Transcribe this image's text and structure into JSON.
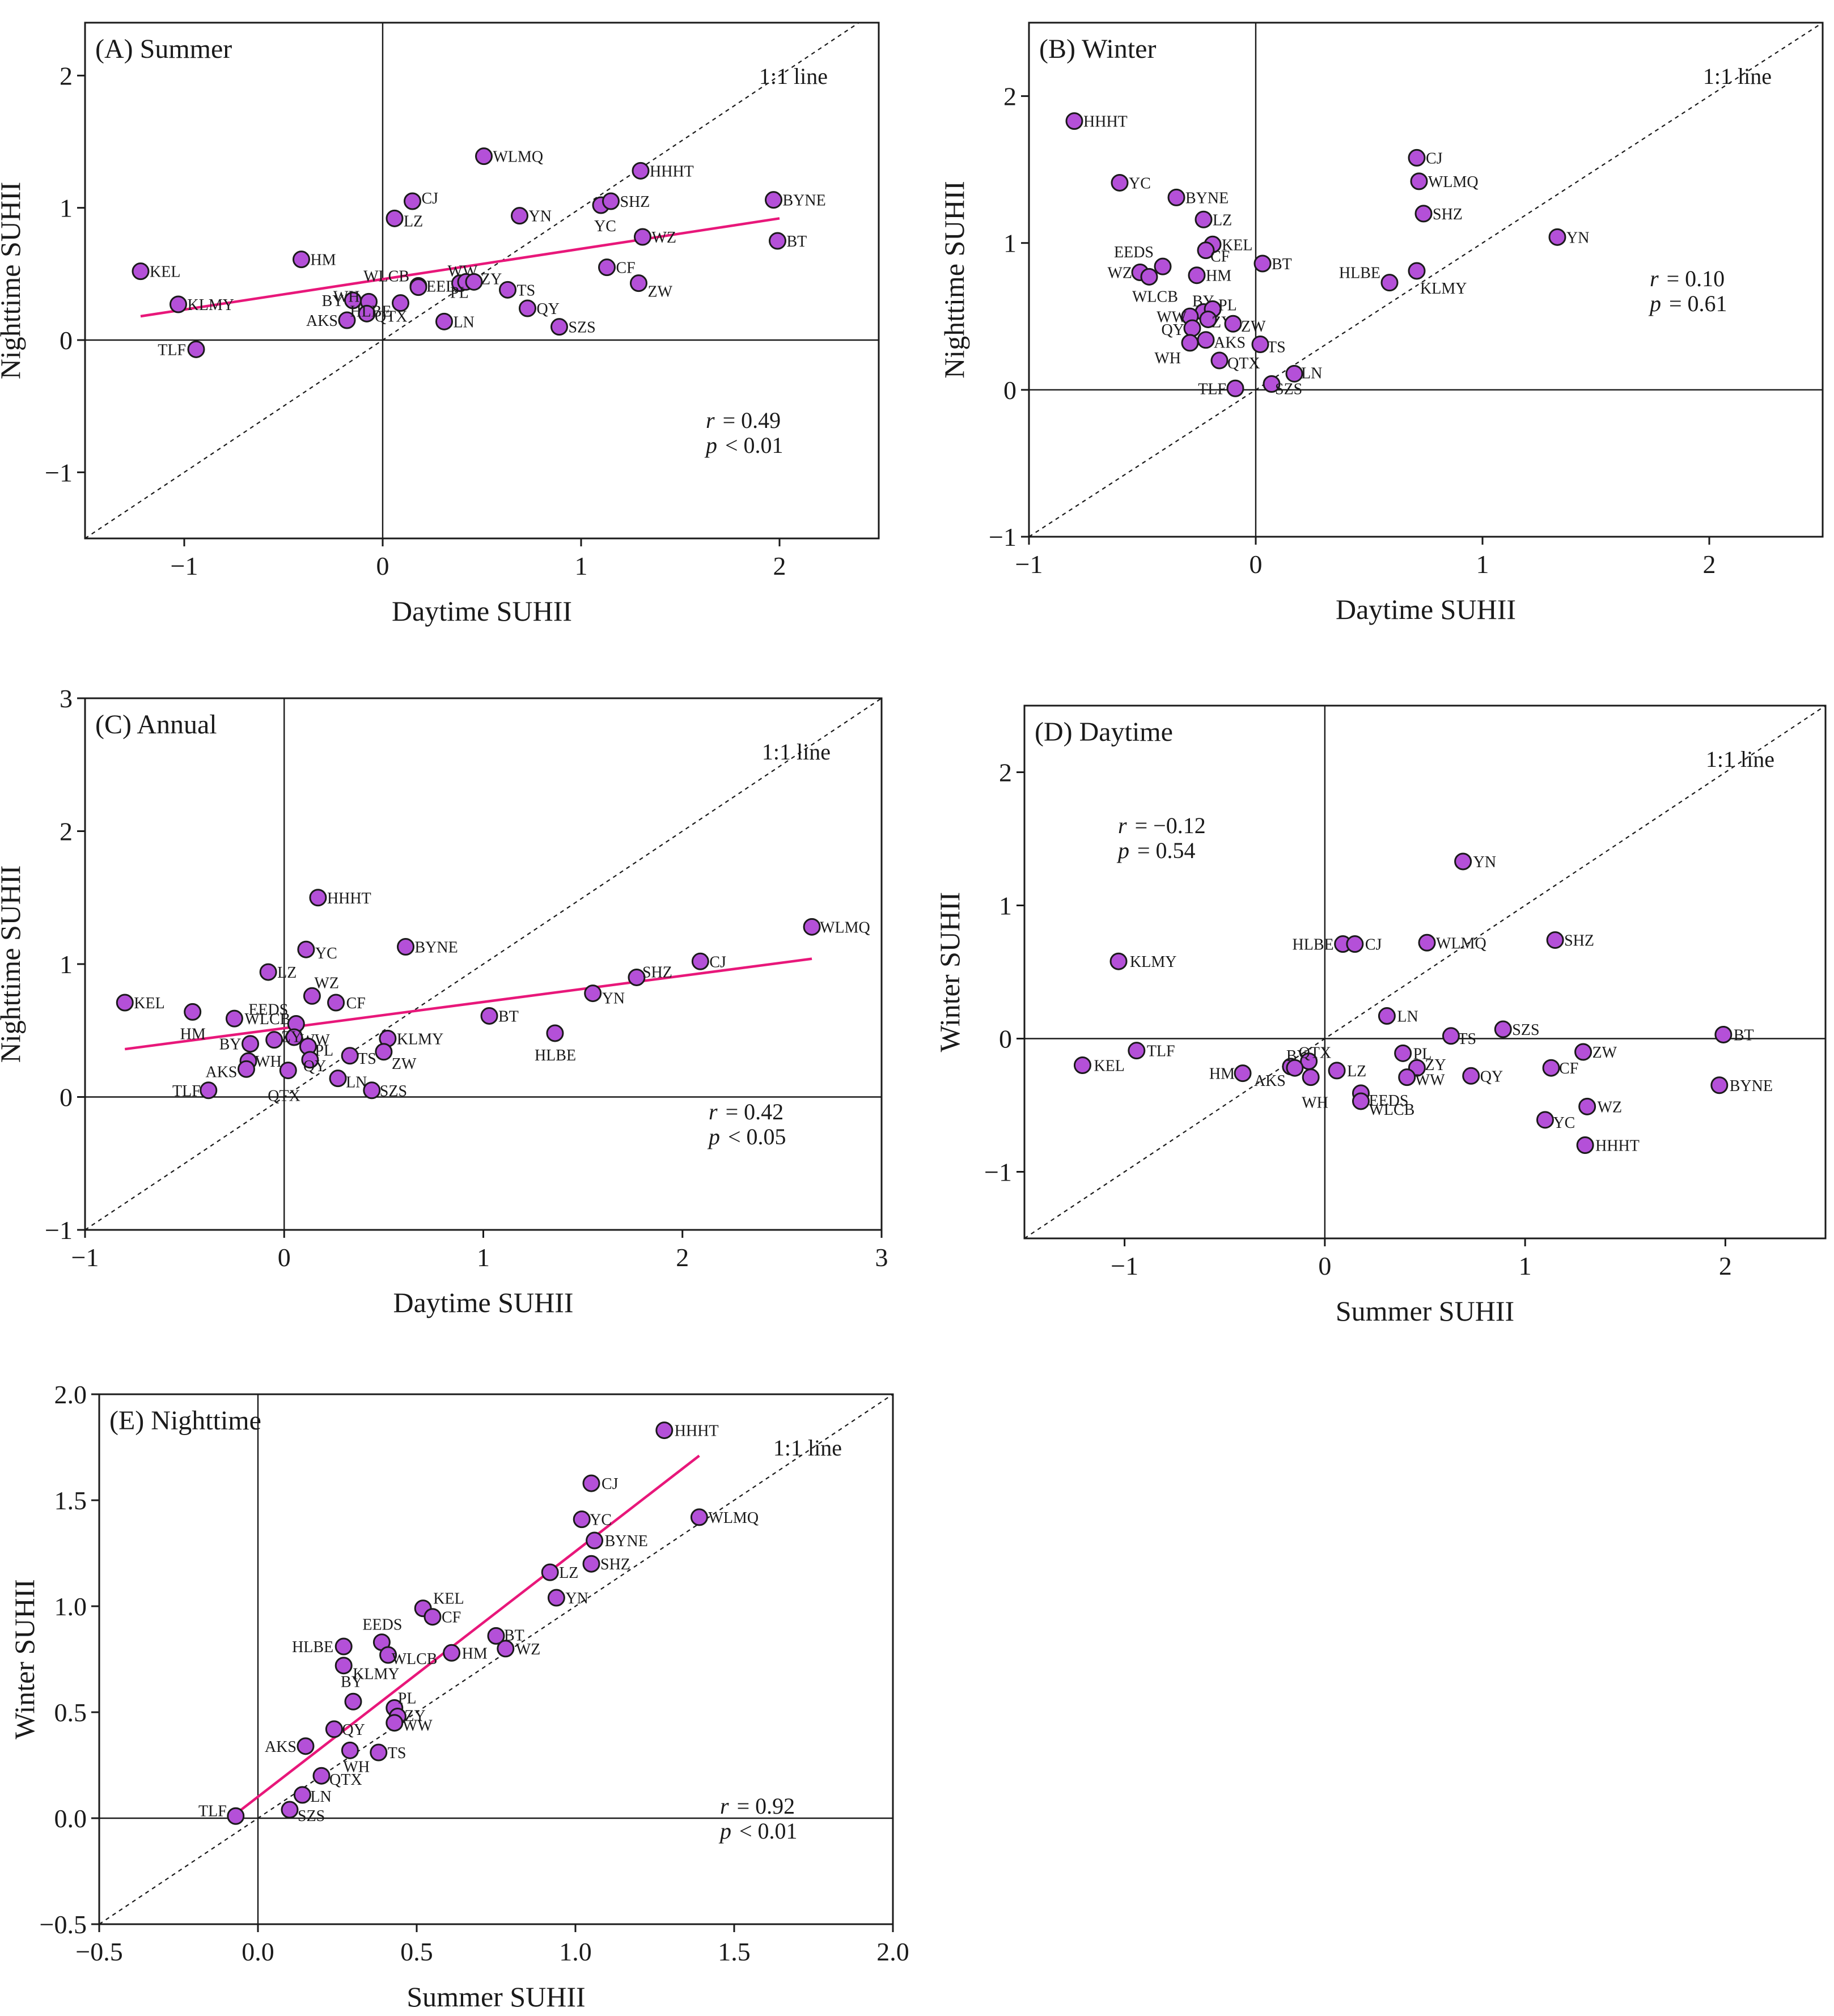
{
  "colors": {
    "point_fill": "#b450d8",
    "point_stroke": "#1a1a1a",
    "fit_line": "#e8177a",
    "axis": "#1a1a1a"
  },
  "chart_data": [
    {
      "id": "A",
      "type": "scatter",
      "title": "(A) Summer",
      "xlabel": "Daytime SUHII",
      "ylabel": "Nighttime SUHII",
      "xlim": [
        -1.5,
        2.5
      ],
      "ylim": [
        -1.5,
        2.4
      ],
      "xticks": [
        -1,
        0,
        1,
        2
      ],
      "yticks": [
        -1,
        0,
        1,
        2
      ],
      "xtick_labels": [
        "−1",
        "0",
        "1",
        "2"
      ],
      "ytick_labels": [
        "−1",
        "0",
        "1",
        "2"
      ],
      "one_to_one_label": "1:1 line",
      "stats": {
        "r_label": "r",
        "r_value": "= 0.49",
        "p_label": "p",
        "p_value": "< 0.01"
      },
      "fit": {
        "x": [
          -1.22,
          2.0
        ],
        "y": [
          0.18,
          0.92
        ]
      },
      "points": [
        {
          "label": "KEL",
          "x": -1.22,
          "y": 0.52
        },
        {
          "label": "KLMY",
          "x": -1.03,
          "y": 0.27
        },
        {
          "label": "TLF",
          "x": -0.94,
          "y": -0.07
        },
        {
          "label": "HM",
          "x": -0.41,
          "y": 0.61
        },
        {
          "label": "BY",
          "x": -0.15,
          "y": 0.3
        },
        {
          "label": "WH",
          "x": -0.07,
          "y": 0.29
        },
        {
          "label": "AKS",
          "x": -0.18,
          "y": 0.15
        },
        {
          "label": "QTX",
          "x": -0.08,
          "y": 0.2
        },
        {
          "label": "HLBE",
          "x": 0.09,
          "y": 0.28
        },
        {
          "label": "WLCB",
          "x": 0.18,
          "y": 0.41
        },
        {
          "label": "EEDS",
          "x": 0.18,
          "y": 0.4
        },
        {
          "label": "LZ",
          "x": 0.06,
          "y": 0.92
        },
        {
          "label": "CJ",
          "x": 0.15,
          "y": 1.05
        },
        {
          "label": "WLMQ",
          "x": 0.51,
          "y": 1.39
        },
        {
          "label": "WW",
          "x": 0.39,
          "y": 0.43
        },
        {
          "label": "PL",
          "x": 0.42,
          "y": 0.44
        },
        {
          "label": "ZY",
          "x": 0.46,
          "y": 0.44
        },
        {
          "label": "LN",
          "x": 0.31,
          "y": 0.14
        },
        {
          "label": "TS",
          "x": 0.63,
          "y": 0.38
        },
        {
          "label": "QY",
          "x": 0.73,
          "y": 0.24
        },
        {
          "label": "SZS",
          "x": 0.89,
          "y": 0.1
        },
        {
          "label": "YN",
          "x": 0.69,
          "y": 0.94
        },
        {
          "label": "YC",
          "x": 1.1,
          "y": 1.02
        },
        {
          "label": "SHZ",
          "x": 1.15,
          "y": 1.05
        },
        {
          "label": "HHHT",
          "x": 1.3,
          "y": 1.28
        },
        {
          "label": "CF",
          "x": 1.13,
          "y": 0.55
        },
        {
          "label": "ZW",
          "x": 1.29,
          "y": 0.43
        },
        {
          "label": "WZ",
          "x": 1.31,
          "y": 0.78
        },
        {
          "label": "BYNE",
          "x": 1.97,
          "y": 1.06
        },
        {
          "label": "BT",
          "x": 1.99,
          "y": 0.75
        }
      ]
    },
    {
      "id": "B",
      "type": "scatter",
      "title": "(B) Winter",
      "xlabel": "Daytime SUHII",
      "ylabel": "Nighttime SUHII",
      "xlim": [
        -1.0,
        2.5
      ],
      "ylim": [
        -1.0,
        2.5
      ],
      "xticks": [
        -1,
        0,
        1,
        2
      ],
      "yticks": [
        -1,
        0,
        1,
        2
      ],
      "xtick_labels": [
        "−1",
        "0",
        "1",
        "2"
      ],
      "ytick_labels": [
        "−1",
        "0",
        "1",
        "2"
      ],
      "one_to_one_label": "1:1 line",
      "stats": {
        "r_label": "r",
        "r_value": "= 0.10",
        "p_label": "p",
        "p_value": "= 0.61"
      },
      "points": [
        {
          "label": "HHHT",
          "x": -0.8,
          "y": 1.83
        },
        {
          "label": "YC",
          "x": -0.6,
          "y": 1.41
        },
        {
          "label": "BYNE",
          "x": -0.35,
          "y": 1.31
        },
        {
          "label": "LZ",
          "x": -0.23,
          "y": 1.16
        },
        {
          "label": "KEL",
          "x": -0.19,
          "y": 0.99
        },
        {
          "label": "CF",
          "x": -0.22,
          "y": 0.95
        },
        {
          "label": "EEDS",
          "x": -0.41,
          "y": 0.84
        },
        {
          "label": "WZ",
          "x": -0.51,
          "y": 0.8
        },
        {
          "label": "WLCB",
          "x": -0.47,
          "y": 0.77
        },
        {
          "label": "HM",
          "x": -0.26,
          "y": 0.78
        },
        {
          "label": "BT",
          "x": 0.03,
          "y": 0.86
        },
        {
          "label": "BY",
          "x": -0.23,
          "y": 0.53
        },
        {
          "label": "PL",
          "x": -0.19,
          "y": 0.55
        },
        {
          "label": "WW",
          "x": -0.29,
          "y": 0.5
        },
        {
          "label": "ZY",
          "x": -0.21,
          "y": 0.48
        },
        {
          "label": "ZW",
          "x": -0.1,
          "y": 0.45
        },
        {
          "label": "QY",
          "x": -0.28,
          "y": 0.42
        },
        {
          "label": "AKS",
          "x": -0.22,
          "y": 0.34
        },
        {
          "label": "WH",
          "x": -0.29,
          "y": 0.32
        },
        {
          "label": "TS",
          "x": 0.02,
          "y": 0.31
        },
        {
          "label": "QTX",
          "x": -0.16,
          "y": 0.2
        },
        {
          "label": "TLF",
          "x": -0.09,
          "y": 0.01
        },
        {
          "label": "SZS",
          "x": 0.07,
          "y": 0.04
        },
        {
          "label": "LN",
          "x": 0.17,
          "y": 0.11
        },
        {
          "label": "CJ",
          "x": 0.71,
          "y": 1.58
        },
        {
          "label": "WLMQ",
          "x": 0.72,
          "y": 1.42
        },
        {
          "label": "SHZ",
          "x": 0.74,
          "y": 1.2
        },
        {
          "label": "HLBE",
          "x": 0.59,
          "y": 0.73
        },
        {
          "label": "KLMY",
          "x": 0.71,
          "y": 0.81
        },
        {
          "label": "YN",
          "x": 1.33,
          "y": 1.04
        }
      ]
    },
    {
      "id": "C",
      "type": "scatter",
      "title": "(C) Annual",
      "xlabel": "Daytime SUHII",
      "ylabel": "Nighttime SUHII",
      "xlim": [
        -1.0,
        3.0
      ],
      "ylim": [
        -1.0,
        3.0
      ],
      "xticks": [
        -1,
        0,
        1,
        2,
        3
      ],
      "yticks": [
        -1,
        0,
        1,
        2,
        3
      ],
      "xtick_labels": [
        "−1",
        "0",
        "1",
        "2",
        "3"
      ],
      "ytick_labels": [
        "−1",
        "0",
        "1",
        "2",
        "3"
      ],
      "one_to_one_label": "1:1 line",
      "stats": {
        "r_label": "r",
        "r_value": "= 0.42",
        "p_label": "p",
        "p_value": "< 0.05"
      },
      "fit": {
        "x": [
          -0.8,
          2.65
        ],
        "y": [
          0.36,
          1.04
        ]
      },
      "points": [
        {
          "label": "KEL",
          "x": -0.8,
          "y": 0.71
        },
        {
          "label": "HM",
          "x": -0.46,
          "y": 0.64
        },
        {
          "label": "WLCB",
          "x": -0.25,
          "y": 0.59
        },
        {
          "label": "LZ",
          "x": -0.08,
          "y": 0.94
        },
        {
          "label": "HHHT",
          "x": 0.17,
          "y": 1.5
        },
        {
          "label": "YC",
          "x": 0.11,
          "y": 1.11
        },
        {
          "label": "BYNE",
          "x": 0.61,
          "y": 1.13
        },
        {
          "label": "WZ",
          "x": 0.14,
          "y": 0.76
        },
        {
          "label": "CF",
          "x": 0.26,
          "y": 0.71
        },
        {
          "label": "EEDS",
          "x": 0.06,
          "y": 0.55
        },
        {
          "label": "WW",
          "x": 0.05,
          "y": 0.45
        },
        {
          "label": "BY",
          "x": -0.17,
          "y": 0.4
        },
        {
          "label": "ZY",
          "x": -0.05,
          "y": 0.43
        },
        {
          "label": "PL",
          "x": 0.12,
          "y": 0.38
        },
        {
          "label": "WH",
          "x": -0.18,
          "y": 0.27
        },
        {
          "label": "AKS",
          "x": -0.19,
          "y": 0.21
        },
        {
          "label": "QY",
          "x": 0.13,
          "y": 0.28
        },
        {
          "label": "TS",
          "x": 0.33,
          "y": 0.31
        },
        {
          "label": "QTX",
          "x": 0.02,
          "y": 0.2
        },
        {
          "label": "LN",
          "x": 0.27,
          "y": 0.14
        },
        {
          "label": "TLF",
          "x": -0.38,
          "y": 0.05
        },
        {
          "label": "SZS",
          "x": 0.44,
          "y": 0.05
        },
        {
          "label": "KLMY",
          "x": 0.52,
          "y": 0.44
        },
        {
          "label": "ZW",
          "x": 0.5,
          "y": 0.34
        },
        {
          "label": "BT",
          "x": 1.03,
          "y": 0.61
        },
        {
          "label": "HLBE",
          "x": 1.36,
          "y": 0.48
        },
        {
          "label": "YN",
          "x": 1.55,
          "y": 0.78
        },
        {
          "label": "SHZ",
          "x": 1.77,
          "y": 0.9
        },
        {
          "label": "CJ",
          "x": 2.09,
          "y": 1.02
        },
        {
          "label": "WLMQ",
          "x": 2.65,
          "y": 1.28
        }
      ]
    },
    {
      "id": "D",
      "type": "scatter",
      "title": "(D) Daytime",
      "xlabel": "Summer SUHII",
      "ylabel": "Winter SUHII",
      "xlim": [
        -1.5,
        2.5
      ],
      "ylim": [
        -1.5,
        2.5
      ],
      "xticks": [
        -1,
        0,
        1,
        2
      ],
      "yticks": [
        -1,
        0,
        1,
        2
      ],
      "xtick_labels": [
        "−1",
        "0",
        "1",
        "2"
      ],
      "ytick_labels": [
        "−1",
        "0",
        "1",
        "2"
      ],
      "one_to_one_label": "1:1 line",
      "stats": {
        "r_label": "r",
        "r_value": "= −0.12",
        "p_label": "p",
        "p_value": "= 0.54"
      },
      "points": [
        {
          "label": "KLMY",
          "x": -1.03,
          "y": 0.58
        },
        {
          "label": "KEL",
          "x": -1.21,
          "y": -0.2
        },
        {
          "label": "TLF",
          "x": -0.94,
          "y": -0.09
        },
        {
          "label": "HM",
          "x": -0.41,
          "y": -0.26
        },
        {
          "label": "BY",
          "x": -0.17,
          "y": -0.21
        },
        {
          "label": "QTX",
          "x": -0.08,
          "y": -0.17
        },
        {
          "label": "AKS",
          "x": -0.15,
          "y": -0.22
        },
        {
          "label": "WH",
          "x": -0.07,
          "y": -0.29
        },
        {
          "label": "LZ",
          "x": 0.06,
          "y": -0.24
        },
        {
          "label": "EEDS",
          "x": 0.18,
          "y": -0.41
        },
        {
          "label": "WLCB",
          "x": 0.18,
          "y": -0.47
        },
        {
          "label": "HLBE",
          "x": 0.09,
          "y": 0.71
        },
        {
          "label": "CJ",
          "x": 0.15,
          "y": 0.71
        },
        {
          "label": "WLMQ",
          "x": 0.51,
          "y": 0.72
        },
        {
          "label": "YN",
          "x": 0.69,
          "y": 1.33
        },
        {
          "label": "LN",
          "x": 0.31,
          "y": 0.17
        },
        {
          "label": "PL",
          "x": 0.39,
          "y": -0.11
        },
        {
          "label": "ZY",
          "x": 0.46,
          "y": -0.22
        },
        {
          "label": "WW",
          "x": 0.41,
          "y": -0.29
        },
        {
          "label": "QY",
          "x": 0.73,
          "y": -0.28
        },
        {
          "label": "TS",
          "x": 0.63,
          "y": 0.02
        },
        {
          "label": "SZS",
          "x": 0.89,
          "y": 0.07
        },
        {
          "label": "SHZ",
          "x": 1.15,
          "y": 0.74
        },
        {
          "label": "ZW",
          "x": 1.29,
          "y": -0.1
        },
        {
          "label": "CF",
          "x": 1.13,
          "y": -0.22
        },
        {
          "label": "WZ",
          "x": 1.31,
          "y": -0.51
        },
        {
          "label": "YC",
          "x": 1.1,
          "y": -0.61
        },
        {
          "label": "HHHT",
          "x": 1.3,
          "y": -0.8
        },
        {
          "label": "BT",
          "x": 1.99,
          "y": 0.03
        },
        {
          "label": "BYNE",
          "x": 1.97,
          "y": -0.35
        }
      ]
    },
    {
      "id": "E",
      "type": "scatter",
      "title": "(E) Nighttime",
      "xlabel": "Summer SUHII",
      "ylabel": "Winter SUHII",
      "xlim": [
        -0.5,
        2.0
      ],
      "ylim": [
        -0.5,
        2.0
      ],
      "xticks": [
        -0.5,
        0.0,
        0.5,
        1.0,
        1.5,
        2.0
      ],
      "yticks": [
        -0.5,
        0.0,
        0.5,
        1.0,
        1.5,
        2.0
      ],
      "xtick_labels": [
        "−0.5",
        "0.0",
        "0.5",
        "1.0",
        "1.5",
        "2.0"
      ],
      "ytick_labels": [
        "−0.5",
        "0.0",
        "0.5",
        "1.0",
        "1.5",
        "2.0"
      ],
      "one_to_one_label": "1:1 line",
      "stats": {
        "r_label": "r",
        "r_value": "= 0.92",
        "p_label": "p",
        "p_value": "< 0.01"
      },
      "fit": {
        "x": [
          -0.07,
          1.39
        ],
        "y": [
          0.02,
          1.71
        ]
      },
      "points": [
        {
          "label": "TLF",
          "x": -0.07,
          "y": 0.01
        },
        {
          "label": "SZS",
          "x": 0.1,
          "y": 0.04
        },
        {
          "label": "LN",
          "x": 0.14,
          "y": 0.11
        },
        {
          "label": "QTX",
          "x": 0.2,
          "y": 0.2
        },
        {
          "label": "AKS",
          "x": 0.15,
          "y": 0.34
        },
        {
          "label": "WH",
          "x": 0.29,
          "y": 0.32
        },
        {
          "label": "TS",
          "x": 0.38,
          "y": 0.31
        },
        {
          "label": "QY",
          "x": 0.24,
          "y": 0.42
        },
        {
          "label": "BY",
          "x": 0.3,
          "y": 0.55
        },
        {
          "label": "KLMY",
          "x": 0.27,
          "y": 0.72
        },
        {
          "label": "HLBE",
          "x": 0.27,
          "y": 0.81
        },
        {
          "label": "EEDS",
          "x": 0.39,
          "y": 0.83
        },
        {
          "label": "WLCB",
          "x": 0.41,
          "y": 0.77
        },
        {
          "label": "PL",
          "x": 0.43,
          "y": 0.52
        },
        {
          "label": "ZY",
          "x": 0.44,
          "y": 0.48
        },
        {
          "label": "WW",
          "x": 0.43,
          "y": 0.45
        },
        {
          "label": "HM",
          "x": 0.61,
          "y": 0.78
        },
        {
          "label": "KEL",
          "x": 0.52,
          "y": 0.99
        },
        {
          "label": "CF",
          "x": 0.55,
          "y": 0.95
        },
        {
          "label": "BT",
          "x": 0.75,
          "y": 0.86
        },
        {
          "label": "WZ",
          "x": 0.78,
          "y": 0.8
        },
        {
          "label": "LZ",
          "x": 0.92,
          "y": 1.16
        },
        {
          "label": "YN",
          "x": 0.94,
          "y": 1.04
        },
        {
          "label": "YC",
          "x": 1.02,
          "y": 1.41
        },
        {
          "label": "CJ",
          "x": 1.05,
          "y": 1.58
        },
        {
          "label": "BYNE",
          "x": 1.06,
          "y": 1.31
        },
        {
          "label": "SHZ",
          "x": 1.05,
          "y": 1.2
        },
        {
          "label": "HHHT",
          "x": 1.28,
          "y": 1.83
        },
        {
          "label": "WLMQ",
          "x": 1.39,
          "y": 1.42
        }
      ]
    }
  ]
}
